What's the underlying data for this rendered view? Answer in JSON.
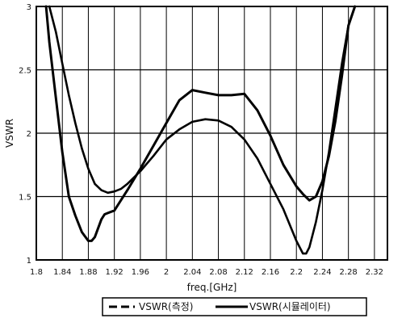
{
  "chart_data": {
    "type": "line",
    "title": "",
    "xlabel": "freq.[GHz]",
    "ylabel": "VSWR",
    "xlim": [
      1.8,
      2.34
    ],
    "ylim": [
      1,
      3
    ],
    "x_ticks": [
      "1.8",
      "1.84",
      "1.88",
      "1.92",
      "1.96",
      "2",
      "2.04",
      "2.08",
      "2.12",
      "2.16",
      "2.2",
      "2.24",
      "2.28",
      "2.32"
    ],
    "y_ticks": [
      "1",
      "1.5",
      "2",
      "2.5",
      "3"
    ],
    "grid": true,
    "legend_position": "bottom",
    "series": [
      {
        "name": "VSWR(측정)",
        "style": "dashed",
        "color": "#000000",
        "x": [
          1.815,
          1.82,
          1.83,
          1.84,
          1.85,
          1.86,
          1.87,
          1.88,
          1.885,
          1.89,
          1.9,
          1.905,
          1.91,
          1.92,
          1.94,
          1.96,
          1.98,
          2.0,
          2.02,
          2.04,
          2.06,
          2.08,
          2.1,
          2.12,
          2.14,
          2.16,
          2.18,
          2.2,
          2.21,
          2.22,
          2.23,
          2.24,
          2.25,
          2.26,
          2.27,
          2.28,
          2.29
        ],
        "y": [
          3.0,
          2.72,
          2.28,
          1.85,
          1.5,
          1.35,
          1.22,
          1.15,
          1.15,
          1.18,
          1.32,
          1.36,
          1.37,
          1.39,
          1.55,
          1.72,
          1.9,
          2.08,
          2.26,
          2.34,
          2.32,
          2.3,
          2.3,
          2.31,
          2.18,
          1.98,
          1.75,
          1.58,
          1.52,
          1.47,
          1.5,
          1.62,
          1.82,
          2.1,
          2.45,
          2.85,
          3.0
        ]
      },
      {
        "name": "VSWR(시뮬레이터)",
        "style": "solid",
        "color": "#000000",
        "x": [
          1.82,
          1.83,
          1.84,
          1.85,
          1.86,
          1.87,
          1.88,
          1.89,
          1.9,
          1.91,
          1.92,
          1.93,
          1.94,
          1.96,
          1.98,
          2.0,
          2.02,
          2.04,
          2.06,
          2.08,
          2.1,
          2.12,
          2.14,
          2.16,
          2.18,
          2.2,
          2.21,
          2.215,
          2.22,
          2.23,
          2.24,
          2.25,
          2.26,
          2.27,
          2.28,
          2.29
        ],
        "y": [
          3.0,
          2.8,
          2.55,
          2.3,
          2.08,
          1.88,
          1.72,
          1.6,
          1.55,
          1.53,
          1.54,
          1.56,
          1.6,
          1.7,
          1.82,
          1.95,
          2.03,
          2.09,
          2.11,
          2.1,
          2.05,
          1.95,
          1.8,
          1.6,
          1.4,
          1.15,
          1.05,
          1.05,
          1.1,
          1.3,
          1.55,
          1.85,
          2.2,
          2.55,
          2.85,
          3.0
        ]
      }
    ]
  }
}
